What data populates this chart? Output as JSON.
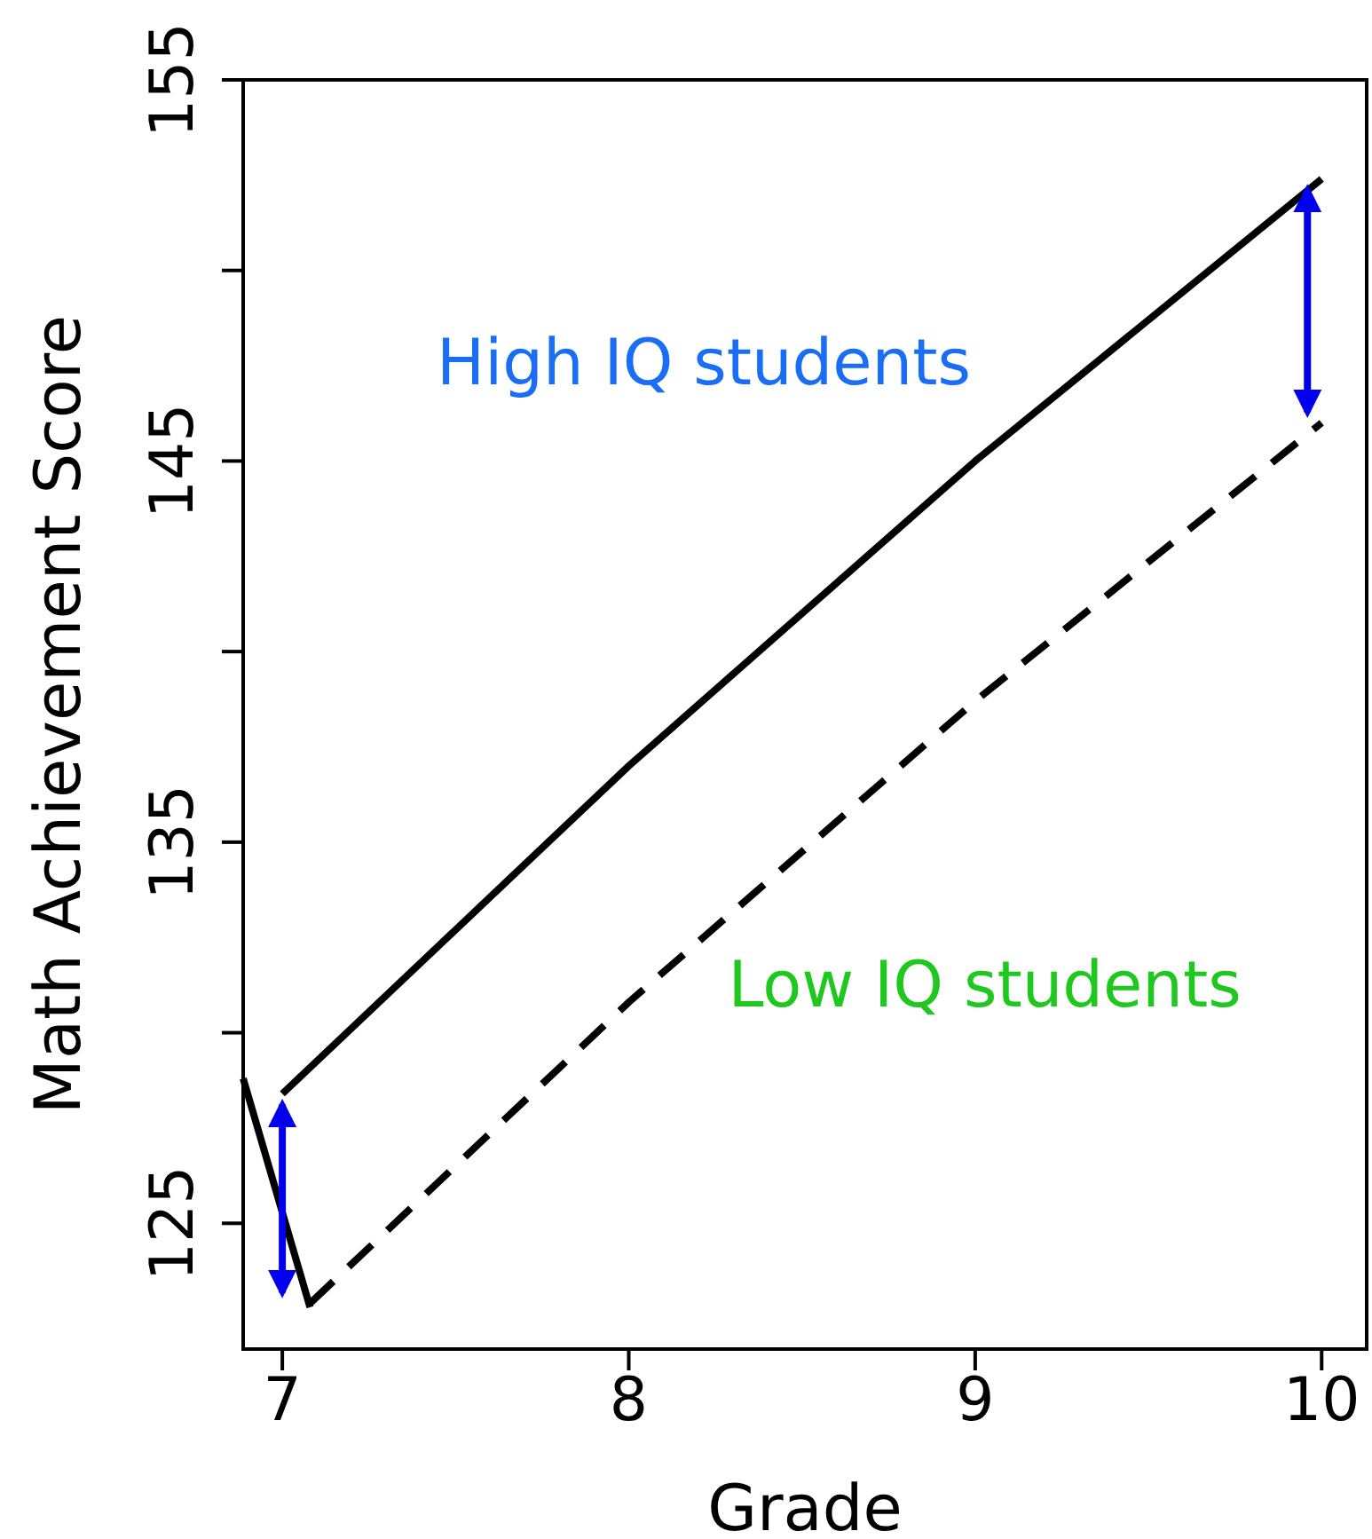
{
  "chart_data": {
    "type": "line",
    "xlabel": "Grade",
    "ylabel": "Math Achievement Score",
    "xlim": [
      6.887,
      10.13
    ],
    "ylim": [
      121.7,
      155
    ],
    "xticks": [
      7,
      8,
      9,
      10
    ],
    "yticks": [
      125,
      {
        "value": 130,
        "label": null
      },
      135,
      {
        "value": 140,
        "label": null
      },
      145,
      {
        "value": 150,
        "label": null
      },
      155
    ],
    "grid": false,
    "marker": "none",
    "series": [
      {
        "color": "#000000",
        "line_style": "solid",
        "x": [
          7,
          8,
          9,
          10
        ],
        "values": [
          128.4,
          137.0,
          145.0,
          152.4
        ]
      },
      {
        "color": "#000000",
        "line_style": "dashed",
        "x": [
          7.08,
          8,
          9,
          10
        ],
        "values": [
          122.9,
          130.8,
          138.7,
          146.0
        ]
      },
      {
        "color": "#000000",
        "line_style": "solid",
        "x": [
          6.887,
          7.08
        ],
        "values": [
          128.8,
          122.8
        ]
      }
    ],
    "annotations": [
      "High IQ students",
      "Low IQ students"
    ]
  }
}
